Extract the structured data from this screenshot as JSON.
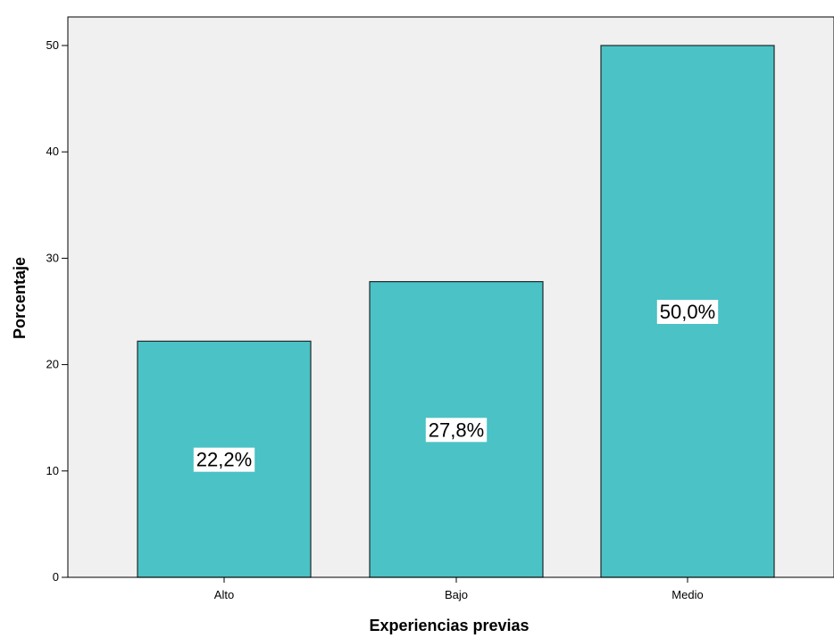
{
  "chart_data": {
    "type": "bar",
    "title": "",
    "xlabel": "Experiencias previas",
    "ylabel": "Porcentaje",
    "categories": [
      "Alto",
      "Bajo",
      "Medio"
    ],
    "values": [
      22.2,
      27.8,
      50.0
    ],
    "data_labels": [
      "22,2%",
      "27,8%",
      "50,0%"
    ],
    "ylim": [
      0,
      50
    ],
    "yticks": [
      0,
      10,
      20,
      30,
      40,
      50
    ],
    "ytick_labels": [
      "0",
      "10",
      "20",
      "30",
      "40",
      "50"
    ],
    "grid": false,
    "legend": "none",
    "colors": {
      "bar_fill": "#4bc2c5",
      "bar_stroke": "#1f2a2a",
      "plot_background": "#f0f0f0",
      "axis": "#000000",
      "label_background": "#ffffff"
    }
  }
}
